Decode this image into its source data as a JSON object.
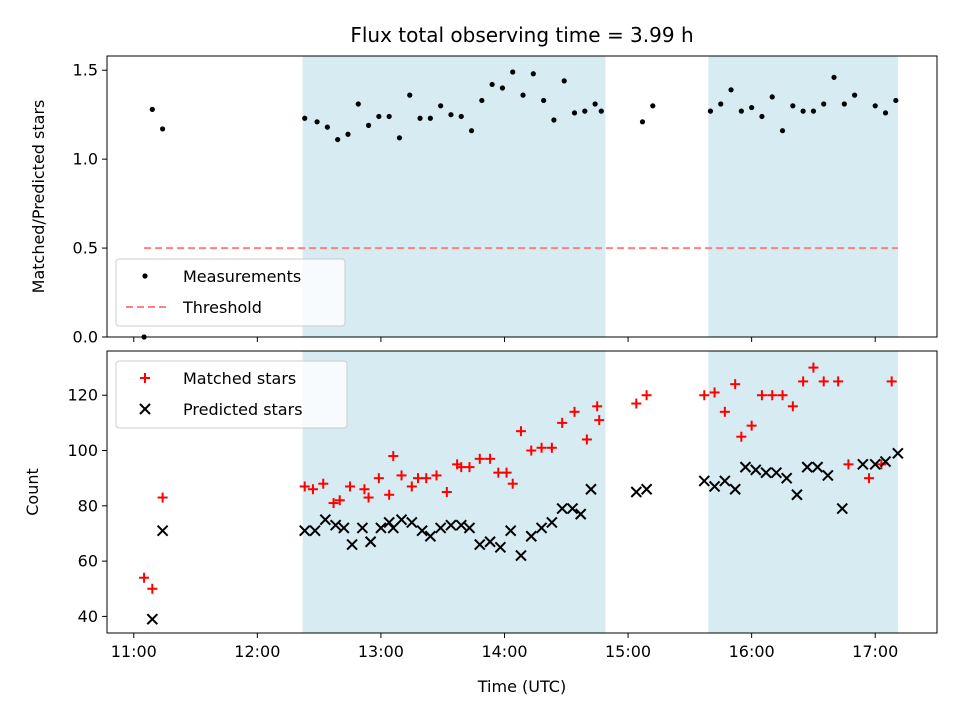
{
  "chart_data": [
    {
      "type": "scatter",
      "title": "Flux total observing time = 3.99 h",
      "xlabel": "",
      "ylabel": "Matched/Predicted stars",
      "xlim": [
        "10:47",
        "17:30"
      ],
      "ylim": [
        0,
        1.58
      ],
      "yticks": [
        "0.0",
        "0.5",
        "1.0",
        "1.5"
      ],
      "ytick_values": [
        0,
        0.5,
        1.0,
        1.5
      ],
      "shaded_intervals": [
        [
          "12:22",
          "14:49"
        ],
        [
          "15:39",
          "17:11"
        ]
      ],
      "shade_color": "#add8e6",
      "legend_position": "lower-left",
      "series": [
        {
          "name": "Measurements",
          "marker": "dot",
          "color": "#000000",
          "x": [
            "11:05",
            "11:09",
            "11:14",
            "12:23",
            "12:29",
            "12:34",
            "12:39",
            "12:44",
            "12:49",
            "12:54",
            "12:59",
            "13:04",
            "13:09",
            "13:14",
            "13:19",
            "13:24",
            "13:29",
            "13:34",
            "13:39",
            "13:44",
            "13:49",
            "13:54",
            "13:59",
            "14:04",
            "14:09",
            "14:14",
            "14:19",
            "14:24",
            "14:29",
            "14:34",
            "14:39",
            "14:44",
            "14:47",
            "15:07",
            "15:12",
            "15:40",
            "15:45",
            "15:50",
            "15:55",
            "15:60",
            "16:05",
            "16:10",
            "16:15",
            "16:20",
            "16:25",
            "16:30",
            "16:35",
            "16:40",
            "16:45",
            "16:50",
            "17:00",
            "17:05",
            "17:10"
          ],
          "y": [
            0.0,
            1.28,
            1.17,
            1.23,
            1.21,
            1.18,
            1.11,
            1.14,
            1.31,
            1.19,
            1.24,
            1.24,
            1.12,
            1.36,
            1.23,
            1.23,
            1.3,
            1.25,
            1.24,
            1.16,
            1.33,
            1.42,
            1.4,
            1.49,
            1.36,
            1.48,
            1.33,
            1.22,
            1.44,
            1.26,
            1.27,
            1.31,
            1.27,
            1.21,
            1.3,
            1.27,
            1.31,
            1.39,
            1.27,
            1.29,
            1.24,
            1.35,
            1.16,
            1.3,
            1.27,
            1.27,
            1.31,
            1.46,
            1.31,
            1.36,
            1.3,
            1.26,
            1.33
          ]
        },
        {
          "name": "Threshold",
          "marker": "dashed-line",
          "color": "#ff8080",
          "x": [
            "11:05",
            "17:11"
          ],
          "y": [
            0.5,
            0.5
          ]
        }
      ]
    },
    {
      "type": "scatter",
      "title": "",
      "xlabel": "Time (UTC)",
      "ylabel": "Count",
      "xlim": [
        "10:47",
        "17:30"
      ],
      "ylim": [
        34,
        136
      ],
      "yticks": [
        "40",
        "60",
        "80",
        "100",
        "120"
      ],
      "ytick_values": [
        40,
        60,
        80,
        100,
        120
      ],
      "xticks": [
        "11:00",
        "12:00",
        "13:00",
        "14:00",
        "15:00",
        "16:00",
        "17:00"
      ],
      "shaded_intervals": [
        [
          "12:22",
          "14:49"
        ],
        [
          "15:39",
          "17:11"
        ]
      ],
      "shade_color": "#add8e6",
      "legend_position": "upper-left",
      "series": [
        {
          "name": "Matched stars",
          "marker": "plus",
          "color": "#ff0000",
          "x": [
            "11:05",
            "11:09",
            "11:14",
            "12:23",
            "12:27",
            "12:32",
            "12:37",
            "12:40",
            "12:45",
            "12:52",
            "12:54",
            "12:59",
            "13:04",
            "13:06",
            "13:10",
            "13:15",
            "13:18",
            "13:22",
            "13:27",
            "13:32",
            "13:37",
            "13:39",
            "13:43",
            "13:48",
            "13:53",
            "13:57",
            "14:01",
            "14:04",
            "14:08",
            "14:13",
            "14:18",
            "14:23",
            "14:28",
            "14:34",
            "14:40",
            "14:45",
            "14:46",
            "15:04",
            "15:09",
            "15:37",
            "15:42",
            "15:47",
            "15:52",
            "15:55",
            "16:00",
            "16:05",
            "16:10",
            "16:15",
            "16:20",
            "16:25",
            "16:30",
            "16:35",
            "16:42",
            "16:47",
            "16:57",
            "17:03",
            "17:08"
          ],
          "y": [
            54,
            50,
            83,
            87,
            86,
            88,
            81,
            82,
            87,
            86,
            83,
            90,
            84,
            98,
            91,
            87,
            90,
            90,
            91,
            85,
            95,
            94,
            94,
            97,
            97,
            92,
            92,
            88,
            107,
            100,
            101,
            101,
            110,
            114,
            104,
            116,
            111,
            117,
            120,
            120,
            121,
            114,
            124,
            105,
            109,
            120,
            120,
            120,
            116,
            125,
            130,
            125,
            125,
            95,
            90,
            95,
            125
          ]
        },
        {
          "name": "Predicted stars",
          "marker": "x",
          "color": "#000000",
          "x": [
            "11:09",
            "11:14",
            "12:23",
            "12:28",
            "12:33",
            "12:38",
            "12:42",
            "12:46",
            "12:51",
            "12:55",
            "13:00",
            "13:04",
            "13:06",
            "13:10",
            "13:15",
            "13:20",
            "13:24",
            "13:29",
            "13:34",
            "13:39",
            "13:43",
            "13:48",
            "13:53",
            "13:58",
            "14:03",
            "14:08",
            "14:13",
            "14:18",
            "14:23",
            "14:28",
            "14:33",
            "14:37",
            "14:42",
            "15:04",
            "15:09",
            "15:37",
            "15:42",
            "15:47",
            "15:52",
            "15:57",
            "16:02",
            "16:07",
            "16:12",
            "16:17",
            "16:22",
            "16:27",
            "16:32",
            "16:37",
            "16:44",
            "16:54",
            "17:00",
            "17:05",
            "17:11"
          ],
          "y": [
            39,
            71,
            71,
            71,
            75,
            73,
            72,
            66,
            72,
            67,
            72,
            74,
            72,
            75,
            74,
            71,
            69,
            72,
            73,
            73,
            72,
            66,
            67,
            65,
            71,
            62,
            69,
            72,
            74,
            79,
            79,
            77,
            86,
            85,
            86,
            89,
            87,
            89,
            86,
            94,
            93,
            92,
            92,
            90,
            84,
            94,
            94,
            91,
            79,
            95,
            95,
            96,
            99
          ]
        }
      ]
    }
  ]
}
